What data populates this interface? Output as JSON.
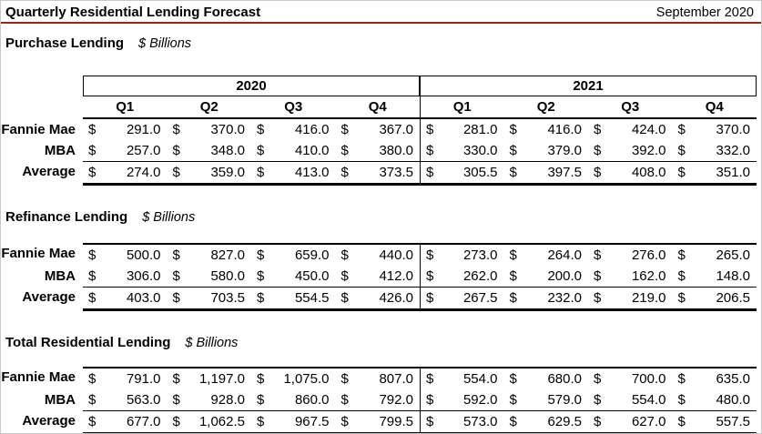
{
  "header": {
    "title": "Quarterly Residential Lending Forecast",
    "date": "September 2020"
  },
  "currency": "$",
  "table_header": {
    "years": [
      "2020",
      "2021"
    ],
    "quarters": [
      "Q1",
      "Q2",
      "Q3",
      "Q4",
      "Q1",
      "Q2",
      "Q3",
      "Q4"
    ]
  },
  "sections": [
    {
      "title": "Purchase Lending",
      "unit": "$ Billions",
      "rows": [
        {
          "label": "Fannie Mae",
          "values": [
            "291.0",
            "370.0",
            "416.0",
            "367.0",
            "281.0",
            "416.0",
            "424.0",
            "370.0"
          ]
        },
        {
          "label": "MBA",
          "values": [
            "257.0",
            "348.0",
            "410.0",
            "380.0",
            "330.0",
            "379.0",
            "392.0",
            "332.0"
          ]
        },
        {
          "label": "Average",
          "values": [
            "274.0",
            "359.0",
            "413.0",
            "373.5",
            "305.5",
            "397.5",
            "408.0",
            "351.0"
          ]
        }
      ]
    },
    {
      "title": "Refinance Lending",
      "unit": "$ Billions",
      "rows": [
        {
          "label": "Fannie Mae",
          "values": [
            "500.0",
            "827.0",
            "659.0",
            "440.0",
            "273.0",
            "264.0",
            "276.0",
            "265.0"
          ]
        },
        {
          "label": "MBA",
          "values": [
            "306.0",
            "580.0",
            "450.0",
            "412.0",
            "262.0",
            "200.0",
            "162.0",
            "148.0"
          ]
        },
        {
          "label": "Average",
          "values": [
            "403.0",
            "703.5",
            "554.5",
            "426.0",
            "267.5",
            "232.0",
            "219.0",
            "206.5"
          ]
        }
      ]
    },
    {
      "title": "Total Residential Lending",
      "unit": "$ Billions",
      "rows": [
        {
          "label": "Fannie Mae",
          "values": [
            "791.0",
            "1,197.0",
            "1,075.0",
            "807.0",
            "554.0",
            "680.0",
            "700.0",
            "635.0"
          ]
        },
        {
          "label": "MBA",
          "values": [
            "563.0",
            "928.0",
            "860.0",
            "792.0",
            "592.0",
            "579.0",
            "554.0",
            "480.0"
          ]
        },
        {
          "label": "Average",
          "values": [
            "677.0",
            "1,062.5",
            "967.5",
            "799.5",
            "573.0",
            "629.5",
            "627.0",
            "557.5"
          ]
        }
      ]
    }
  ],
  "colors": {
    "accent_line": "#8B2C24"
  }
}
